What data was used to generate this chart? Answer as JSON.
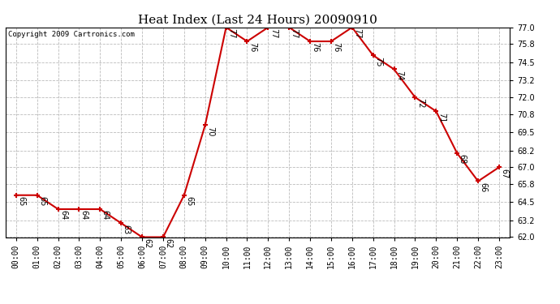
{
  "title": "Heat Index (Last 24 Hours) 20090910",
  "copyright": "Copyright 2009 Cartronics.com",
  "hours": [
    "00:00",
    "01:00",
    "02:00",
    "03:00",
    "04:00",
    "05:00",
    "06:00",
    "07:00",
    "08:00",
    "09:00",
    "10:00",
    "11:00",
    "12:00",
    "13:00",
    "14:00",
    "15:00",
    "16:00",
    "17:00",
    "18:00",
    "19:00",
    "20:00",
    "21:00",
    "22:00",
    "23:00"
  ],
  "values": [
    65,
    65,
    64,
    64,
    64,
    63,
    62,
    62,
    65,
    70,
    77,
    76,
    77,
    77,
    76,
    76,
    77,
    75,
    74,
    72,
    71,
    68,
    66,
    67
  ],
  "ylim_min": 62.0,
  "ylim_max": 77.0,
  "yticks": [
    62.0,
    63.2,
    64.5,
    65.8,
    67.0,
    68.2,
    69.5,
    70.8,
    72.0,
    73.2,
    74.5,
    75.8,
    77.0
  ],
  "line_color": "#cc0000",
  "marker_color": "#cc0000",
  "bg_color": "#ffffff",
  "grid_color": "#bbbbbb",
  "title_fontsize": 11,
  "label_fontsize": 7,
  "tick_fontsize": 7,
  "copyright_fontsize": 6.5
}
